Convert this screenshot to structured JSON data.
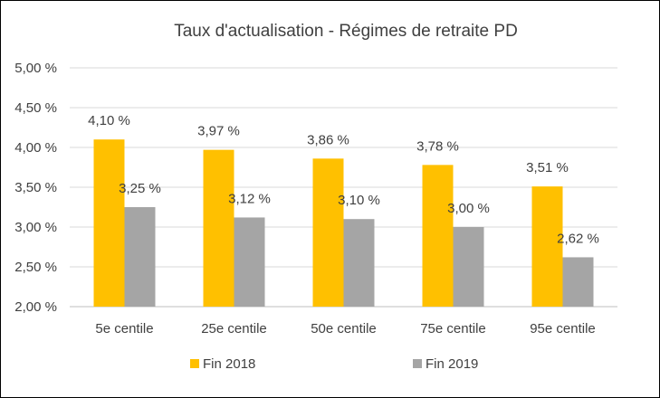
{
  "chart_data": {
    "type": "bar",
    "title": "Taux d'actualisation - Régimes de retraite PD",
    "categories": [
      "5e centile",
      "25e centile",
      "50e centile",
      "75e centile",
      "95e centile"
    ],
    "series": [
      {
        "name": "Fin 2018",
        "color": "#FFC000",
        "values": [
          4.1,
          3.97,
          3.86,
          3.78,
          3.51
        ],
        "labels": [
          "4,10 %",
          "3,97 %",
          "3,86 %",
          "3,78 %",
          "3,51 %"
        ]
      },
      {
        "name": "Fin 2019",
        "color": "#A5A5A5",
        "values": [
          3.25,
          3.12,
          3.1,
          3.0,
          2.62
        ],
        "labels": [
          "3,25 %",
          "3,12 %",
          "3,10 %",
          "3,00 %",
          "2,62 %"
        ]
      }
    ],
    "yticks": [
      2.0,
      2.5,
      3.0,
      3.5,
      4.0,
      4.5,
      5.0
    ],
    "ytick_labels": [
      "2,00 %",
      "2,50 %",
      "3,00 %",
      "3,50 %",
      "4,00 %",
      "4,50 %",
      "5,00 %"
    ],
    "ylim": [
      2.0,
      5.0
    ],
    "grid": true,
    "gridline_color": "#D9D9D9",
    "legend_position": "bottom"
  }
}
